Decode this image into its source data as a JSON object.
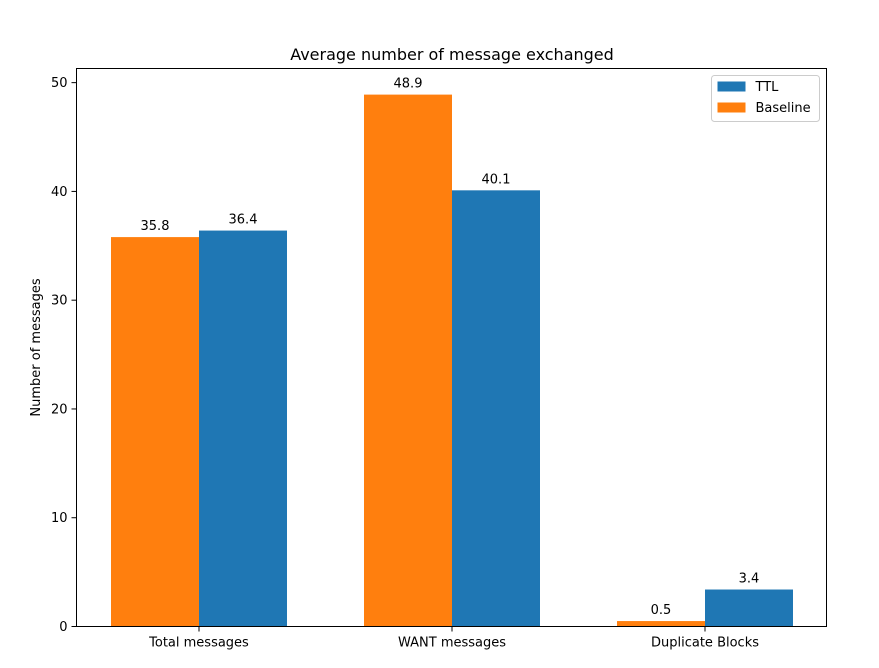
{
  "chart_data": {
    "type": "bar",
    "title": "Average number of message exchanged",
    "xlabel": "",
    "ylabel": "Number of messages",
    "categories": [
      "Total messages",
      "WANT messages",
      "Duplicate Blocks"
    ],
    "series": [
      {
        "name": "Baseline",
        "color": "#ff7f0e",
        "values": [
          35.8,
          48.9,
          0.5
        ],
        "labels": [
          "35.8",
          "48.9",
          "0.5"
        ]
      },
      {
        "name": "TTL",
        "color": "#1f77b4",
        "values": [
          36.4,
          40.1,
          3.4
        ],
        "labels": [
          "36.4",
          "40.1",
          "3.4"
        ]
      }
    ],
    "ylim": [
      0,
      51.3
    ],
    "yticks": [
      0,
      10,
      20,
      30,
      40,
      50
    ],
    "ytick_labels": [
      "0",
      "10",
      "20",
      "30",
      "40",
      "50"
    ],
    "legend": {
      "placement": "top-right",
      "order": [
        "TTL",
        "Baseline"
      ]
    },
    "grid": false
  }
}
